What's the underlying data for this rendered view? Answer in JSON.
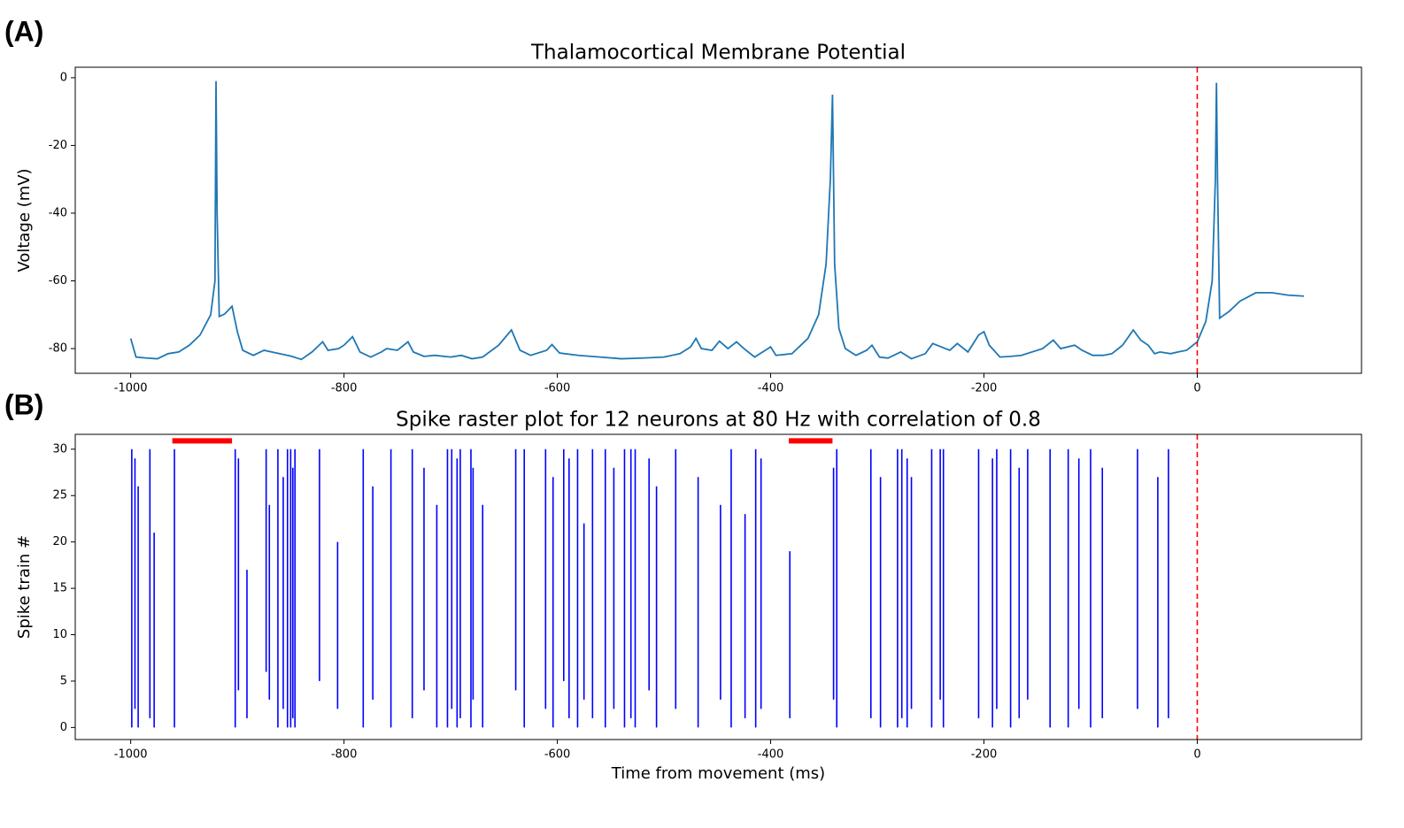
{
  "chart_data": [
    {
      "type": "line",
      "panel_label": "(A)",
      "title": "Thalamocortical Membrane Potential",
      "y_label": "Voltage (mV)",
      "xlim": [
        -1052,
        154
      ],
      "ylim": [
        -87.3,
        3.1
      ],
      "xticks": [
        -1000,
        -800,
        -600,
        -400,
        -200,
        0
      ],
      "yticks": [
        0,
        -20,
        -40,
        -60,
        -80
      ],
      "color": "#1f77b4",
      "vline": 0,
      "vline_color": "red",
      "x": [
        -1000,
        -995,
        -985,
        -975,
        -965,
        -955,
        -945,
        -935,
        -925,
        -921,
        -920,
        -919,
        -917,
        -912,
        -905,
        -900,
        -895,
        -885,
        -875,
        -865,
        -850,
        -840,
        -830,
        -820,
        -815,
        -805,
        -800,
        -792,
        -785,
        -775,
        -765,
        -760,
        -750,
        -740,
        -735,
        -725,
        -715,
        -700,
        -690,
        -680,
        -670,
        -655,
        -643,
        -635,
        -625,
        -610,
        -605,
        -598,
        -580,
        -560,
        -540,
        -520,
        -500,
        -485,
        -475,
        -470,
        -465,
        -455,
        -448,
        -440,
        -432,
        -425,
        -415,
        -405,
        -400,
        -395,
        -380,
        -365,
        -355,
        -348,
        -344,
        -342,
        -340,
        -336,
        -330,
        -320,
        -310,
        -305,
        -298,
        -290,
        -278,
        -268,
        -255,
        -248,
        -240,
        -232,
        -225,
        -215,
        -205,
        -200,
        -195,
        -185,
        -175,
        -165,
        -145,
        -135,
        -128,
        -115,
        -108,
        -98,
        -88,
        -80,
        -70,
        -60,
        -53,
        -46,
        -40,
        -35,
        -25,
        -18,
        -10,
        0,
        8,
        14,
        17,
        18,
        19,
        21,
        30,
        40,
        55,
        70,
        85,
        100
      ],
      "values": [
        -77,
        -82.5,
        -82.8,
        -83,
        -81.5,
        -81,
        -79,
        -76,
        -70,
        -60,
        -1,
        -40,
        -70.5,
        -69.8,
        -67.5,
        -75,
        -80.5,
        -82,
        -80.5,
        -81.2,
        -82.2,
        -83.2,
        -81,
        -78,
        -80.5,
        -80,
        -79,
        -76.5,
        -81,
        -82.5,
        -81,
        -80,
        -80.5,
        -78,
        -81,
        -82.3,
        -82,
        -82.5,
        -82,
        -83,
        -82.5,
        -79,
        -74.5,
        -80.5,
        -82,
        -80.5,
        -78.8,
        -81.3,
        -82,
        -82.5,
        -83,
        -82.8,
        -82.5,
        -81.5,
        -79.5,
        -77,
        -80,
        -80.5,
        -77.8,
        -80,
        -78,
        -80,
        -82.5,
        -80.5,
        -79.5,
        -82,
        -81.5,
        -77,
        -70,
        -55,
        -30,
        -5,
        -55,
        -74,
        -80,
        -82,
        -80.5,
        -79,
        -82.5,
        -82.8,
        -81,
        -83,
        -81.5,
        -78.5,
        -79.5,
        -80.5,
        -78.5,
        -81,
        -76,
        -75,
        -79,
        -82.5,
        -82.3,
        -82,
        -80,
        -77.5,
        -80,
        -79,
        -80.5,
        -82,
        -82,
        -81.5,
        -79,
        -74.5,
        -77.5,
        -79,
        -81.5,
        -81,
        -81.5,
        -81,
        -80.5,
        -78,
        -72,
        -60,
        -30,
        -1.5,
        -30,
        -71,
        -69,
        -66,
        -63.5,
        -63.5,
        -64.2,
        -64.5
      ]
    },
    {
      "type": "raster",
      "panel_label": "(B)",
      "title": "Spike raster plot for 12 neurons at 80 Hz with correlation of 0.8",
      "x_label": "Time from movement (ms)",
      "y_label": "Spike train #",
      "xlim": [
        -1052,
        154
      ],
      "ylim": [
        -1.3,
        31.6
      ],
      "xticks": [
        -1000,
        -800,
        -600,
        -400,
        -200,
        0
      ],
      "yticks": [
        0,
        5,
        10,
        15,
        20,
        25,
        30
      ],
      "color": "blue",
      "vline": 0,
      "vline_color": "red",
      "highlights": [
        {
          "x": [
            -961,
            -905
          ],
          "y": 30.9,
          "color": "red"
        },
        {
          "x": [
            -383,
            -342
          ],
          "y": 30.9,
          "color": "red"
        }
      ],
      "spikes": [
        [
          -999,
          0,
          30
        ],
        [
          -996,
          2,
          29
        ],
        [
          -993,
          0,
          26
        ],
        [
          -982,
          1,
          30
        ],
        [
          -978,
          0,
          21
        ],
        [
          -959,
          0,
          30
        ],
        [
          -902,
          0,
          30
        ],
        [
          -899,
          4,
          29
        ],
        [
          -891,
          1,
          17
        ],
        [
          -873,
          6,
          30
        ],
        [
          -870,
          3,
          24
        ],
        [
          -862,
          0,
          30
        ],
        [
          -857,
          2,
          27
        ],
        [
          -853,
          0,
          30
        ],
        [
          -850,
          0,
          30
        ],
        [
          -848,
          1,
          28
        ],
        [
          -846,
          0,
          30
        ],
        [
          -823,
          5,
          30
        ],
        [
          -806,
          2,
          20
        ],
        [
          -782,
          0,
          30
        ],
        [
          -773,
          3,
          26
        ],
        [
          -756,
          0,
          30
        ],
        [
          -736,
          1,
          30
        ],
        [
          -725,
          4,
          28
        ],
        [
          -713,
          0,
          24
        ],
        [
          -703,
          0,
          30
        ],
        [
          -699,
          2,
          30
        ],
        [
          -694,
          0,
          29
        ],
        [
          -691,
          1,
          30
        ],
        [
          -681,
          0,
          30
        ],
        [
          -679,
          3,
          28
        ],
        [
          -670,
          0,
          24
        ],
        [
          -639,
          4,
          30
        ],
        [
          -631,
          0,
          30
        ],
        [
          -611,
          2,
          30
        ],
        [
          -604,
          0,
          27
        ],
        [
          -594,
          5,
          30
        ],
        [
          -589,
          1,
          29
        ],
        [
          -581,
          0,
          30
        ],
        [
          -575,
          3,
          22
        ],
        [
          -567,
          1,
          30
        ],
        [
          -555,
          0,
          30
        ],
        [
          -547,
          2,
          28
        ],
        [
          -537,
          0,
          30
        ],
        [
          -531,
          1,
          30
        ],
        [
          -527,
          0,
          30
        ],
        [
          -514,
          4,
          29
        ],
        [
          -507,
          0,
          26
        ],
        [
          -489,
          2,
          30
        ],
        [
          -468,
          0,
          27
        ],
        [
          -447,
          3,
          24
        ],
        [
          -437,
          0,
          30
        ],
        [
          -424,
          1,
          23
        ],
        [
          -414,
          0,
          30
        ],
        [
          -409,
          2,
          29
        ],
        [
          -382,
          1,
          19
        ],
        [
          -341,
          3,
          28
        ],
        [
          -338,
          0,
          30
        ],
        [
          -306,
          1,
          30
        ],
        [
          -297,
          0,
          27
        ],
        [
          -281,
          0,
          30
        ],
        [
          -277,
          1,
          30
        ],
        [
          -272,
          0,
          29
        ],
        [
          -268,
          2,
          27
        ],
        [
          -249,
          0,
          30
        ],
        [
          -241,
          3,
          30
        ],
        [
          -238,
          0,
          30
        ],
        [
          -205,
          1,
          30
        ],
        [
          -192,
          0,
          29
        ],
        [
          -188,
          2,
          30
        ],
        [
          -175,
          0,
          30
        ],
        [
          -167,
          1,
          28
        ],
        [
          -159,
          3,
          30
        ],
        [
          -138,
          0,
          30
        ],
        [
          -121,
          0,
          30
        ],
        [
          -111,
          2,
          29
        ],
        [
          -100,
          0,
          30
        ],
        [
          -89,
          1,
          28
        ],
        [
          -56,
          2,
          30
        ],
        [
          -37,
          0,
          27
        ],
        [
          -27,
          1,
          30
        ]
      ]
    }
  ]
}
